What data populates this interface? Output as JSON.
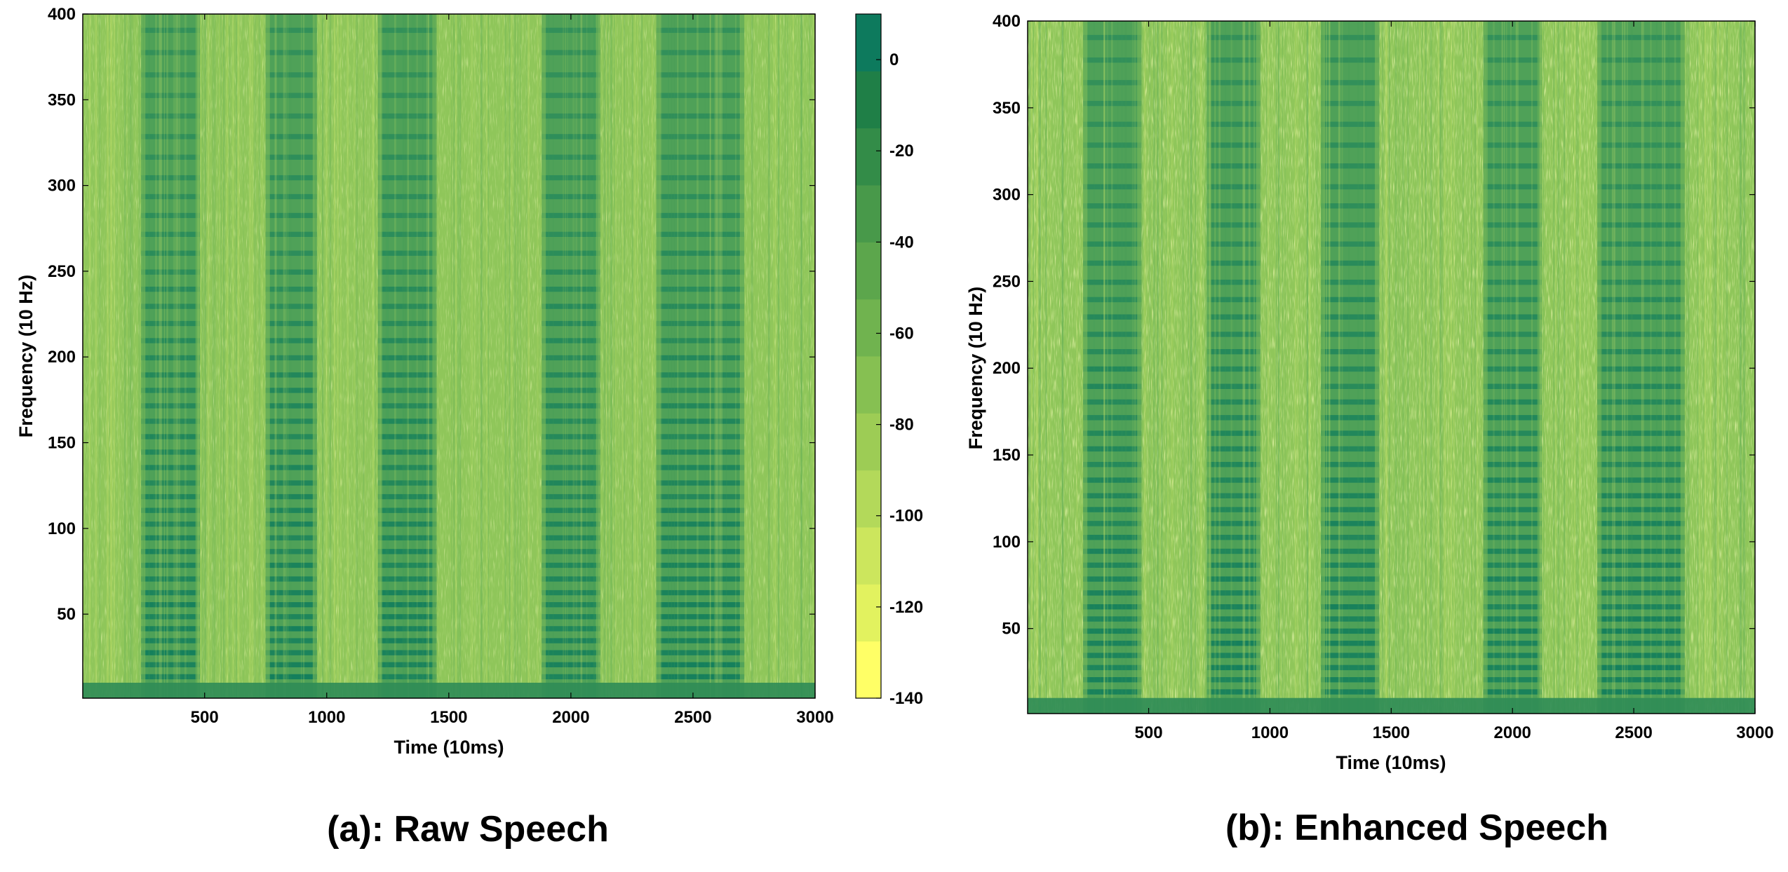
{
  "chart_data": [
    {
      "type": "heatmap",
      "caption": "(a): Raw Speech",
      "xlabel": "Time (10ms)",
      "ylabel": "Frequency (10 Hz)",
      "xlim": [
        1,
        3000
      ],
      "ylim": [
        1,
        400
      ],
      "xticks": [
        500,
        1000,
        1500,
        2000,
        2500,
        3000
      ],
      "yticks": [
        50,
        100,
        150,
        200,
        250,
        300,
        350,
        400
      ],
      "colormap": "summer (green to yellow)",
      "speech_segments_x": [
        [
          240,
          480
        ],
        [
          750,
          960
        ],
        [
          1210,
          1450
        ],
        [
          1880,
          2120
        ],
        [
          2350,
          2710
        ]
      ],
      "colorbar": {
        "ticks": [
          0,
          -20,
          -40,
          -60,
          -80,
          -100,
          -120,
          -140
        ],
        "range": [
          -140,
          10
        ],
        "colors": [
          "#ffff66",
          "#e2f25f",
          "#cce65d",
          "#b3d95a",
          "#9dcc55",
          "#86c052",
          "#70b34f",
          "#5ca64c",
          "#48994a",
          "#338c48",
          "#1f7f47",
          "#0d7a5d"
        ]
      }
    },
    {
      "type": "heatmap",
      "caption": "(b): Enhanced Speech",
      "xlabel": "Time (10ms)",
      "ylabel": "Frequency (10 Hz)",
      "xlim": [
        1,
        3000
      ],
      "ylim": [
        1,
        400
      ],
      "xticks": [
        500,
        1000,
        1500,
        2000,
        2500,
        3000
      ],
      "yticks": [
        50,
        100,
        150,
        200,
        250,
        300,
        350,
        400
      ],
      "colormap": "summer (green to yellow)",
      "speech_segments_x": [
        [
          230,
          470
        ],
        [
          740,
          960
        ],
        [
          1210,
          1450
        ],
        [
          1880,
          2120
        ],
        [
          2350,
          2710
        ]
      ]
    }
  ]
}
